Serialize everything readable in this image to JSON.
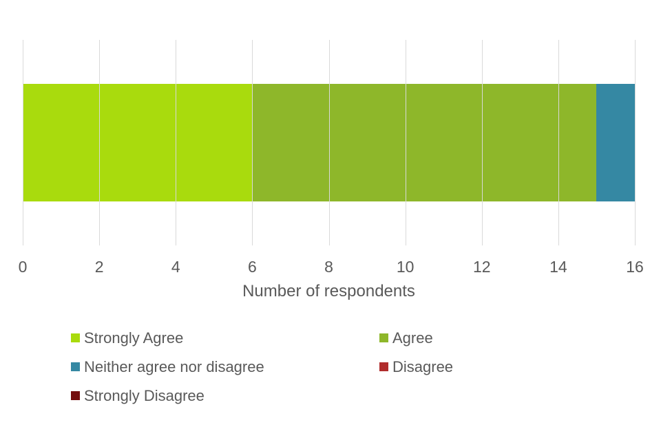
{
  "chart_data": {
    "type": "bar",
    "orientation": "horizontal",
    "stacked": true,
    "title": "",
    "xlabel": "Number of respondents",
    "ylabel": "",
    "xlim": [
      0,
      16
    ],
    "xticks": [
      "0",
      "2",
      "4",
      "6",
      "8",
      "10",
      "12",
      "14",
      "16"
    ],
    "grid": "vertical-only",
    "legend_position": "bottom",
    "series": [
      {
        "name": "Strongly Agree",
        "value": 6,
        "color": "#a9db0d"
      },
      {
        "name": "Agree",
        "value": 9,
        "color": "#8eb72a"
      },
      {
        "name": "Neither agree nor disagree",
        "value": 1,
        "color": "#3588a3"
      },
      {
        "name": "Disagree",
        "value": 0,
        "color": "#b02c2c"
      },
      {
        "name": "Strongly Disagree",
        "value": 0,
        "color": "#740e0e"
      }
    ],
    "colors": {
      "gridline": "#d9d9d9",
      "axis_text": "#595959",
      "background": "#ffffff"
    }
  }
}
